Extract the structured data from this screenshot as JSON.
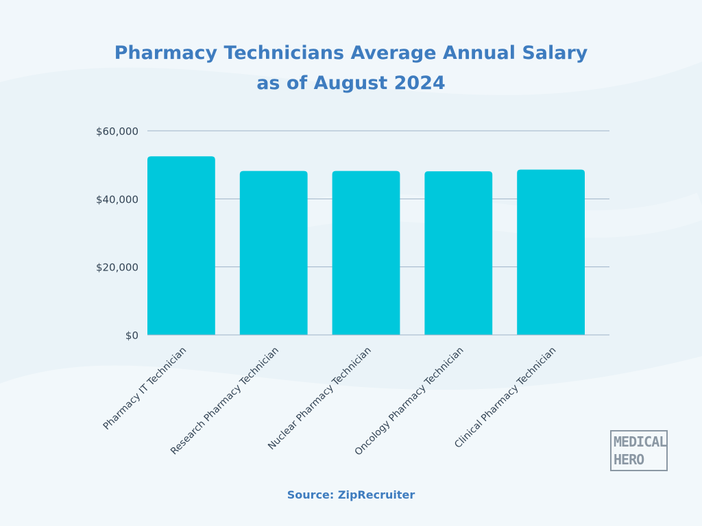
{
  "colors": {
    "bar": "#00c8dc",
    "title": "#3e7cbf",
    "gridline": "#9fb3c8",
    "axis_text": "#334455",
    "logo": "#8a97a3"
  },
  "source": "Source: ZipRecruiter",
  "logo": {
    "line1": "MEDICAL",
    "line2": "HERO"
  },
  "chart_data": {
    "type": "bar",
    "title_lines": [
      "Pharmacy Technicians Average Annual Salary",
      "as of August 2024"
    ],
    "categories": [
      "Pharmacy IT Technician",
      "Research Pharmacy Technician",
      "Nuclear Pharmacy Technician",
      "Oncology Pharmacy Technician",
      "Clinical Pharmacy Technician"
    ],
    "values": [
      52500,
      48200,
      48200,
      48100,
      48600
    ],
    "ylim": [
      0,
      60000
    ],
    "yticks": [
      {
        "value": 0,
        "label": "$0"
      },
      {
        "value": 20000,
        "label": "$20,000"
      },
      {
        "value": 40000,
        "label": "$40,000"
      },
      {
        "value": 60000,
        "label": "$60,000"
      }
    ],
    "grid": true,
    "legend": "none"
  }
}
